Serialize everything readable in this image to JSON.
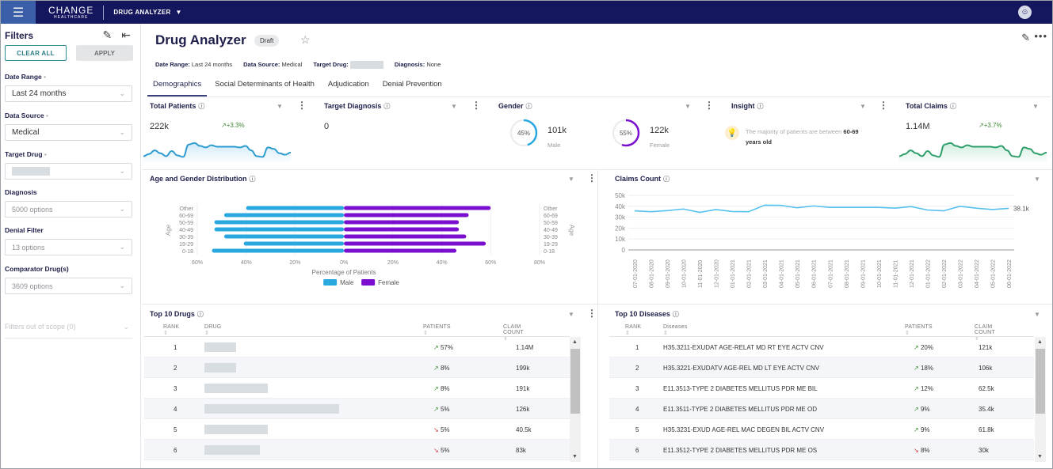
{
  "topbar": {
    "menu_icon": "hamburger-icon",
    "logo_line1": "CHANGE",
    "logo_line2": "HEALTHCARE",
    "app_name": "DRUG ANALYZER",
    "app_caret": "▼",
    "avatar_icon": "user-icon"
  },
  "sidebar": {
    "title": "Filters",
    "clear_all": "CLEAR ALL",
    "apply": "APPLY",
    "filters": [
      {
        "label": "Date Range",
        "required": true,
        "value": "Last 24 months",
        "placeholder": false
      },
      {
        "label": "Data Source",
        "required": true,
        "value": "Medical",
        "placeholder": false
      },
      {
        "label": "Target Drug",
        "required": true,
        "value": "",
        "redacted": true,
        "placeholder": false
      },
      {
        "label": "Diagnosis",
        "required": false,
        "value": "5000 options",
        "placeholder": true
      },
      {
        "label": "Denial Filter",
        "required": false,
        "value": "13 options",
        "placeholder": true
      },
      {
        "label": "Comparator Drug(s)",
        "required": false,
        "value": "3609 options",
        "placeholder": true
      }
    ],
    "out_of_scope": "Filters out of scope (0)"
  },
  "header": {
    "title": "Drug Analyzer",
    "badge": "Draft",
    "meta": {
      "date_range_label": "Date Range:",
      "date_range": "Last 24 months",
      "data_source_label": "Data Source:",
      "data_source": "Medical",
      "target_drug_label": "Target Drug:",
      "diagnosis_label": "Diagnosis:",
      "diagnosis": "None"
    },
    "tabs": [
      "Demographics",
      "Social Determinants of Health",
      "Adjudication",
      "Denial Prevention"
    ],
    "active_tab": 0
  },
  "kpis": {
    "total_patients": {
      "title": "Total Patients",
      "value": "222k",
      "trend": "+3.3%",
      "spark": [
        6,
        9,
        14,
        10,
        6,
        13,
        7,
        5,
        22,
        24,
        20,
        18,
        21,
        19,
        19,
        19,
        19,
        18,
        20,
        14,
        6,
        5,
        18,
        16,
        10,
        8,
        11
      ]
    },
    "target_diagnosis": {
      "title": "Target Diagnosis",
      "value": "0"
    },
    "gender": {
      "title": "Gender",
      "male_pct": 45,
      "male_pct_label": "45%",
      "male_value": "101k",
      "male_label": "Male",
      "female_pct": 55,
      "female_pct_label": "55%",
      "female_value": "122k",
      "female_label": "Female"
    },
    "insight": {
      "title": "Insight",
      "text_pre": "The majority of patients are between ",
      "text_bold1": "60-69",
      "text_bold2": "years old"
    },
    "total_claims": {
      "title": "Total Claims",
      "value": "1.14M",
      "trend": "+3.7%",
      "spark": [
        6,
        9,
        14,
        10,
        6,
        13,
        7,
        5,
        22,
        24,
        20,
        18,
        21,
        19,
        19,
        19,
        19,
        18,
        20,
        14,
        6,
        5,
        18,
        16,
        10,
        8,
        11
      ]
    }
  },
  "colors": {
    "male": "#29a8e0",
    "female": "#7b0fcf",
    "navy": "#14175e",
    "line": "#56c1ee",
    "claims_spark": "#2f9e6b",
    "patients_spark": "#2e9ccf"
  },
  "chart_data": [
    {
      "type": "bar",
      "orientation": "horizontal",
      "title": "Age and Gender Distribution",
      "categories": [
        "Other",
        "60-69",
        "50-59",
        "40-49",
        "30-39",
        "19-29",
        "0-18"
      ],
      "series": [
        {
          "name": "Male",
          "values": [
            40,
            49,
            53,
            53,
            49,
            41,
            54
          ]
        },
        {
          "name": "Female",
          "values": [
            60,
            51,
            47,
            47,
            50,
            58,
            46
          ]
        }
      ],
      "xlabel": "Percentage of Patients",
      "ylabel": "Age",
      "xticks": [
        "60%",
        "40%",
        "20%",
        "0%",
        "20%",
        "40%",
        "60%",
        "80%"
      ],
      "xlim": [
        -60,
        80
      ],
      "legend": "bottom"
    },
    {
      "type": "line",
      "title": "Claims Count",
      "x": [
        "07-01-2020",
        "08-01-2020",
        "09-01-2020",
        "10-01-2020",
        "11-01-2020",
        "12-01-2020",
        "01-01-2021",
        "02-01-2021",
        "03-01-2021",
        "04-01-2021",
        "05-01-2021",
        "06-01-2021",
        "07-01-2021",
        "08-01-2021",
        "09-01-2021",
        "10-01-2021",
        "11-01-2021",
        "12-01-2021",
        "01-01-2022",
        "02-01-2022",
        "03-01-2022",
        "04-01-2022",
        "05-01-2022",
        "06-01-2022"
      ],
      "series": [
        {
          "name": "Claims",
          "values": [
            35.8,
            35.0,
            36.0,
            37.5,
            34.4,
            37.0,
            35.2,
            35.0,
            41.0,
            40.8,
            38.6,
            40.3,
            39.0,
            39.0,
            39.0,
            39.0,
            38.3,
            39.7,
            36.6,
            35.8,
            40.0,
            38.3,
            37.0,
            38.1
          ]
        }
      ],
      "yticks": [
        "0",
        "10k",
        "20k",
        "30k",
        "40k",
        "50k"
      ],
      "ylim": [
        0,
        50
      ],
      "end_label": "38.1k",
      "grid": true
    }
  ],
  "top_drugs": {
    "title": "Top 10 Drugs",
    "columns": [
      "RANK",
      "DRUG",
      "PATIENTS",
      "CLAIM COUNT"
    ],
    "rows": [
      {
        "rank": "1",
        "redact_w": 0.4,
        "dir": "up",
        "patients": "57%",
        "claims": "1.14M"
      },
      {
        "rank": "2",
        "redact_w": 0.4,
        "dir": "up",
        "patients": "8%",
        "claims": "199k"
      },
      {
        "rank": "3",
        "redact_w": 0.8,
        "dir": "up",
        "patients": "8%",
        "claims": "191k"
      },
      {
        "rank": "4",
        "redact_w": 1.7,
        "dir": "up",
        "patients": "5%",
        "claims": "126k"
      },
      {
        "rank": "5",
        "redact_w": 0.8,
        "dir": "down",
        "patients": "5%",
        "claims": "40.5k"
      },
      {
        "rank": "6",
        "redact_w": 0.7,
        "dir": "down",
        "patients": "5%",
        "claims": "83k"
      }
    ]
  },
  "top_diseases": {
    "title": "Top 10 Diseases",
    "columns": [
      "RANK",
      "Diseases",
      "PATIENTS",
      "CLAIM COUNT"
    ],
    "rows": [
      {
        "rank": "1",
        "name": "H35.3211-EXUDAT AGE-RELAT MD RT EYE ACTV CNV",
        "dir": "up",
        "patients": "20%",
        "claims": "121k"
      },
      {
        "rank": "2",
        "name": "H35.3221-EXUDATV AGE-REL MD LT EYE ACTV CNV",
        "dir": "up",
        "patients": "18%",
        "claims": "106k"
      },
      {
        "rank": "3",
        "name": "E11.3513-TYPE 2 DIABETES MELLITUS PDR ME BIL",
        "dir": "up",
        "patients": "12%",
        "claims": "62.5k"
      },
      {
        "rank": "4",
        "name": "E11.3511-TYPE 2 DIABETES MELLITUS PDR ME OD",
        "dir": "up",
        "patients": "9%",
        "claims": "35.4k"
      },
      {
        "rank": "5",
        "name": "H35.3231-EXUD AGE-REL MAC DEGEN BIL ACTV CNV",
        "dir": "up",
        "patients": "9%",
        "claims": "61.8k"
      },
      {
        "rank": "6",
        "name": "E11.3512-TYPE 2 DIABETES MELLITUS PDR ME OS",
        "dir": "down",
        "patients": "8%",
        "claims": "30k"
      }
    ]
  }
}
